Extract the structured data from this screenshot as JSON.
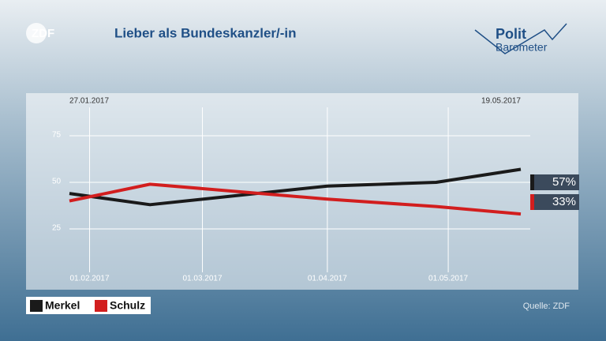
{
  "chart_data": {
    "type": "line",
    "title": "Lieber als Bundeskanzler/-in",
    "source": "Quelle: ZDF",
    "x": [
      "2017-01-27",
      "2017-02-16",
      "2017-04-01",
      "2017-04-28",
      "2017-05-19"
    ],
    "series": [
      {
        "name": "Merkel",
        "color": "#1a1a1a",
        "values": [
          44,
          38,
          48,
          50,
          57
        ],
        "value_labels": [
          null,
          null,
          null,
          null,
          "57%"
        ]
      },
      {
        "name": "Schulz",
        "color": "#d21e1e",
        "values": [
          40,
          49,
          41,
          37,
          33
        ],
        "value_labels": [
          null,
          null,
          null,
          null,
          "33%"
        ]
      }
    ],
    "xlim": [
      {
        "value": "2017-01-27",
        "label": "27.01.2017"
      },
      {
        "value": "2017-05-19",
        "label": "19.05.2017"
      }
    ],
    "xticks": [
      {
        "value": "2017-02-01",
        "label": "01.02.2017"
      },
      {
        "value": "2017-03-01",
        "label": "01.03.2017"
      },
      {
        "value": "2017-04-01",
        "label": "01.04.2017"
      },
      {
        "value": "2017-05-01",
        "label": "01.05.2017"
      }
    ],
    "ylim": [
      0,
      100
    ],
    "yticks": [
      25,
      50,
      75
    ],
    "grid": true
  },
  "branding": {
    "channel": "ZDF",
    "show_top": "Polit",
    "show_bottom": "Barometer"
  }
}
